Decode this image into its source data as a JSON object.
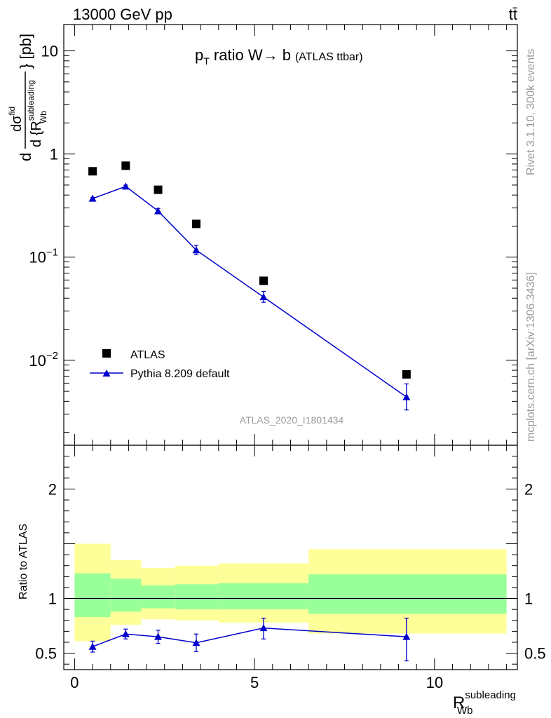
{
  "header": {
    "left": "13000 GeV pp",
    "right": "tt̄"
  },
  "side_label_top": "Rivet 3.1.10,  300k events",
  "side_label_bottom": "mcplots.cern.ch [arXiv:1306.3436]",
  "watermark": "ATLAS_2020_I1801434",
  "chart_data": [
    {
      "type": "scatter",
      "title_parts": {
        "p": "p",
        "T": "T",
        "main": " ratio W",
        "arrow": "→",
        "b": " b",
        "paren": "(ATLAS ttbar)"
      },
      "ylabel_parts": {
        "d": "d",
        "sigma": "dσ",
        "fid": "fid",
        "dr": "d {R",
        "sup": "subleading",
        "sub": "Wb",
        "tail": "} [pb]"
      },
      "yscale": "log",
      "ylim": [
        0.0015,
        18
      ],
      "xlim": [
        -0.3,
        12.3
      ],
      "y_ticks": [
        {
          "value": 10,
          "base": "10",
          "exp": ""
        },
        {
          "value": 1,
          "base": "1",
          "exp": ""
        },
        {
          "value": 0.1,
          "base": "10",
          "exp": "−1"
        },
        {
          "value": 0.01,
          "base": "10",
          "exp": "−2"
        }
      ],
      "legend": {
        "position": "bottom-left"
      },
      "series": [
        {
          "name": "ATLAS",
          "color": "#000000",
          "marker": "square",
          "x": [
            0.5,
            1.42,
            2.32,
            3.38,
            5.25,
            9.22
          ],
          "y": [
            0.68,
            0.77,
            0.45,
            0.21,
            0.059,
            0.0073
          ]
        },
        {
          "name": "Pythia 8.209 default",
          "color": "#0000cc",
          "marker": "triangle",
          "x": [
            0.5,
            1.42,
            2.32,
            3.38,
            5.25,
            9.22
          ],
          "y": [
            0.37,
            0.485,
            0.28,
            0.117,
            0.041,
            0.0044
          ],
          "err_low": [
            0.01,
            0.015,
            0.017,
            0.011,
            0.0045,
            0.0011
          ],
          "err_high": [
            0.01,
            0.015,
            0.017,
            0.013,
            0.0055,
            0.0015
          ]
        }
      ]
    },
    {
      "type": "ratio",
      "ylabel": "Ratio to ATLAS",
      "xlabel_parts": {
        "base": "R",
        "sup": "subleading",
        "sub": "Wb"
      },
      "ylim": [
        0.35,
        2.4
      ],
      "xlim": [
        -0.3,
        12.3
      ],
      "y_ticks": [
        "0.5",
        "1",
        "2"
      ],
      "y_tick_values": [
        0.5,
        1,
        2
      ],
      "x_ticks": [
        "0",
        "5",
        "10"
      ],
      "x_tick_values": [
        0,
        5,
        10
      ],
      "bands": [
        {
          "x0": 0.0,
          "x1": 1.0,
          "inner": [
            0.83,
            1.23
          ],
          "outer": [
            0.61,
            1.5
          ]
        },
        {
          "x0": 1.0,
          "x1": 1.85,
          "inner": [
            0.88,
            1.18
          ],
          "outer": [
            0.76,
            1.35
          ]
        },
        {
          "x0": 1.85,
          "x1": 2.8,
          "inner": [
            0.91,
            1.12
          ],
          "outer": [
            0.81,
            1.28
          ]
        },
        {
          "x0": 2.8,
          "x1": 4.0,
          "inner": [
            0.9,
            1.13
          ],
          "outer": [
            0.8,
            1.3
          ]
        },
        {
          "x0": 4.0,
          "x1": 6.5,
          "inner": [
            0.9,
            1.14
          ],
          "outer": [
            0.78,
            1.32
          ]
        },
        {
          "x0": 6.5,
          "x1": 12.0,
          "inner": [
            0.86,
            1.22
          ],
          "outer": [
            0.68,
            1.45
          ]
        }
      ],
      "inner_color": "#99ff99",
      "outer_color": "#ffff99",
      "series": {
        "name": "Pythia 8.209 default",
        "color": "#0000cc",
        "x": [
          0.5,
          1.42,
          2.32,
          3.38,
          5.25,
          9.22
        ],
        "y": [
          0.56,
          0.675,
          0.65,
          0.595,
          0.73,
          0.65
        ],
        "err_low": [
          0.05,
          0.045,
          0.06,
          0.08,
          0.1,
          0.22
        ],
        "err_high": [
          0.05,
          0.045,
          0.06,
          0.08,
          0.09,
          0.17
        ]
      }
    }
  ]
}
